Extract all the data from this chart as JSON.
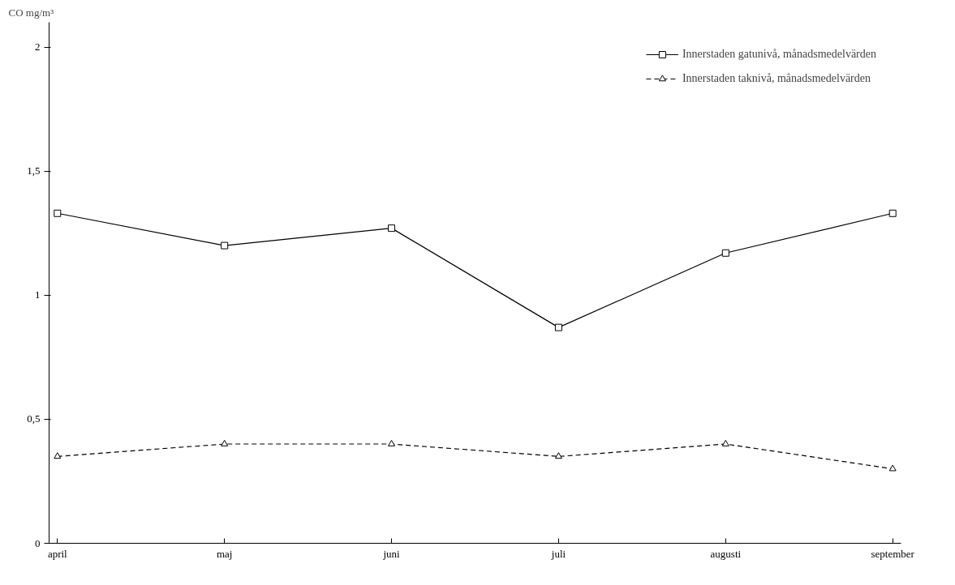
{
  "chart_data": {
    "type": "line",
    "ylabel": "CO mg/m³",
    "categories": [
      "april",
      "maj",
      "juni",
      "juli",
      "augusti",
      "september"
    ],
    "series": [
      {
        "name": "Innerstaden gatunivå, månadsmedelvärden",
        "color": "#000000",
        "marker": "square",
        "line_style": "solid",
        "values": [
          1.33,
          1.2,
          1.27,
          0.87,
          1.17,
          1.33
        ]
      },
      {
        "name": "Innerstaden taknivå, månadsmedelvärden",
        "color": "#000000",
        "marker": "triangle",
        "line_style": "dashed",
        "values": [
          0.35,
          0.4,
          0.4,
          0.35,
          0.4,
          0.3
        ]
      }
    ],
    "ylim": [
      0,
      2.1
    ],
    "yticks": [
      0,
      {
        "value": 0.5,
        "label": "0,5"
      },
      1,
      {
        "value": 1.5,
        "label": "1,5"
      },
      2
    ],
    "grid": false,
    "legend": "top right"
  }
}
